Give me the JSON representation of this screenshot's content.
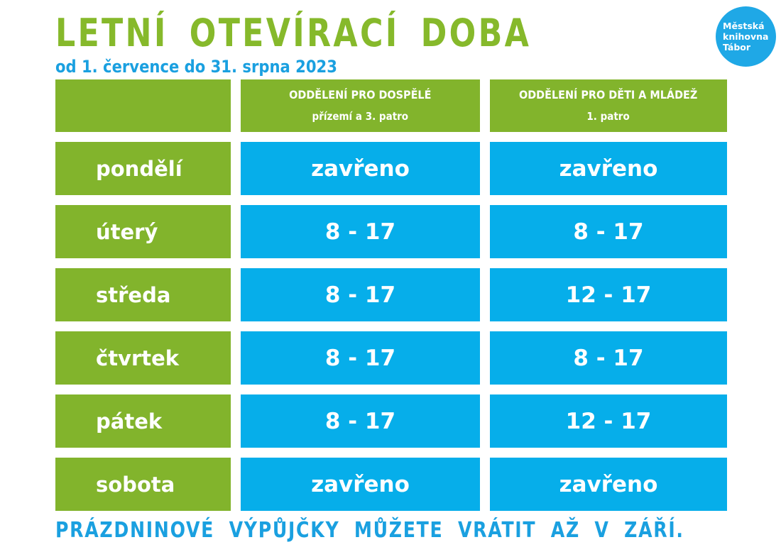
{
  "title": "LETNÍ OTEVÍRACÍ DOBA",
  "subtitle": "od 1. července do 31. srpna 2023",
  "logo": {
    "line1": "Městská",
    "line2": "knihovna",
    "line3": "Tábor"
  },
  "colors": {
    "green": "#82b42c",
    "blue": "#06aeea",
    "title_green": "#86b92b",
    "text_blue": "#1aa0e0"
  },
  "table": {
    "corner": "",
    "columns": [
      {
        "name": "ODDĚLENÍ PRO DOSPĚLÉ",
        "floor": "přízemí a 3. patro"
      },
      {
        "name": "ODDĚLENÍ PRO DĚTI A MLÁDEŽ",
        "floor": "1. patro"
      }
    ],
    "rows": [
      {
        "day": "pondělí",
        "values": [
          "zavřeno",
          "zavřeno"
        ]
      },
      {
        "day": "úterý",
        "values": [
          "8 - 17",
          "8 - 17"
        ]
      },
      {
        "day": "středa",
        "values": [
          "8 - 17",
          "12 - 17"
        ]
      },
      {
        "day": "čtvrtek",
        "values": [
          "8 - 17",
          "8 - 17"
        ]
      },
      {
        "day": "pátek",
        "values": [
          "8 - 17",
          "12 - 17"
        ]
      },
      {
        "day": "sobota",
        "values": [
          "zavřeno",
          "zavřeno"
        ]
      }
    ]
  },
  "footer": "PRÁZDNINOVÉ VÝPŮJČKY MŮŽETE VRÁTIT AŽ V ZÁŘÍ."
}
